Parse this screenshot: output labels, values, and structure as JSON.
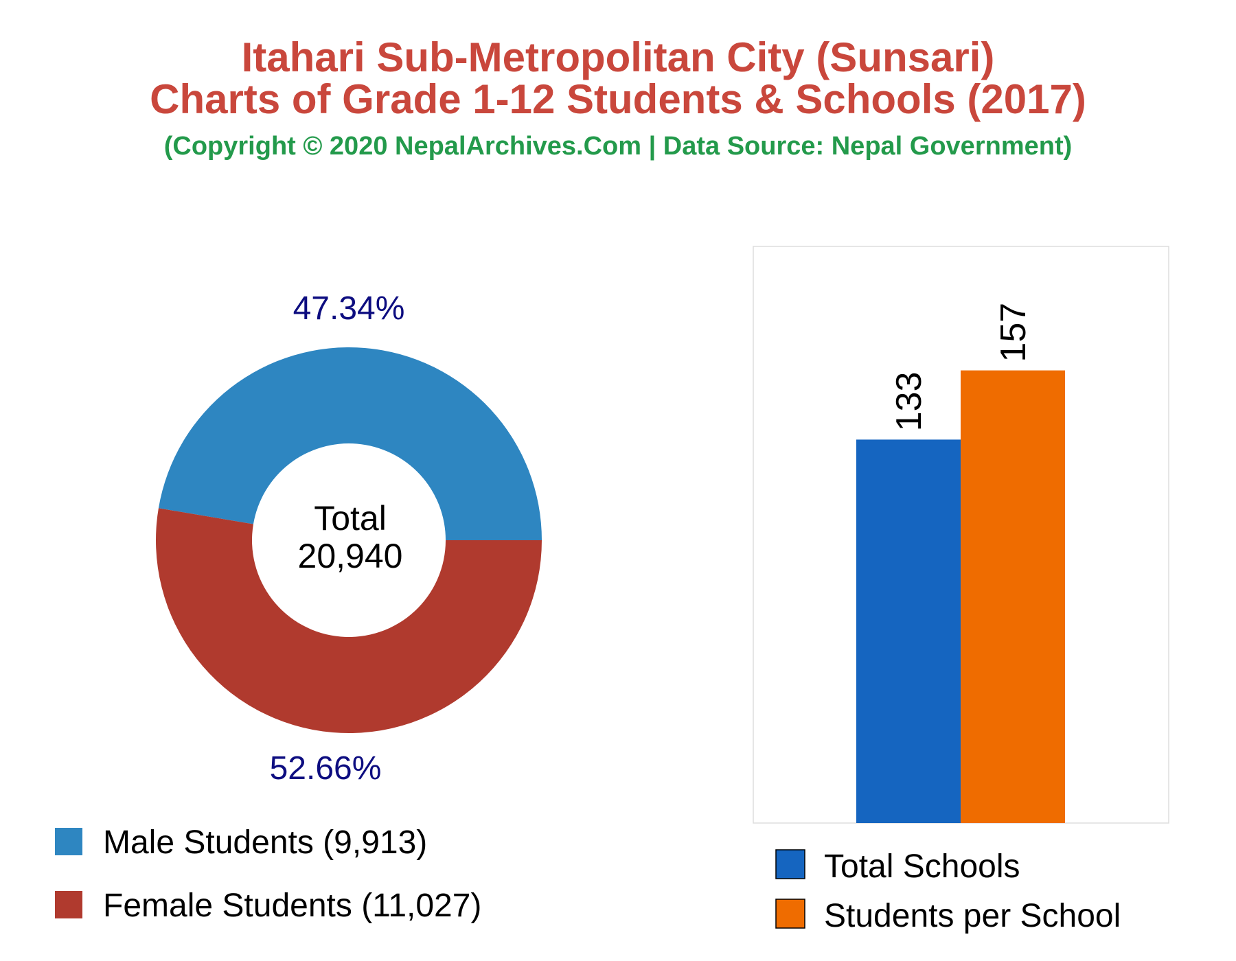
{
  "header": {
    "title_line1": "Itahari Sub-Metropolitan City (Sunsari)",
    "title_line2": "Charts of Grade 1-12 Students & Schools (2017)",
    "subtitle": "(Copyright © 2020 NepalArchives.Com | Data Source: Nepal Government)"
  },
  "chart_data": [
    {
      "type": "pie",
      "style": "donut",
      "center_label": "Total",
      "center_value": "20,940",
      "slices": [
        {
          "name": "Male Students (9,913)",
          "value": 9913,
          "percent_label": "47.34%",
          "color": "#2e86c1"
        },
        {
          "name": "Female Students (11,027)",
          "value": 11027,
          "percent_label": "52.66%",
          "color": "#b03a2e"
        }
      ],
      "label_color": "#0d0d80",
      "legend_position": "bottom-left"
    },
    {
      "type": "bar",
      "categories": [
        "Total Schools",
        "Students per School"
      ],
      "values": [
        133,
        157
      ],
      "value_labels": [
        "133",
        "157"
      ],
      "colors": [
        "#1565c0",
        "#ef6c00"
      ],
      "ylim": [
        0,
        200
      ],
      "grid": false,
      "legend_position": "bottom"
    }
  ]
}
